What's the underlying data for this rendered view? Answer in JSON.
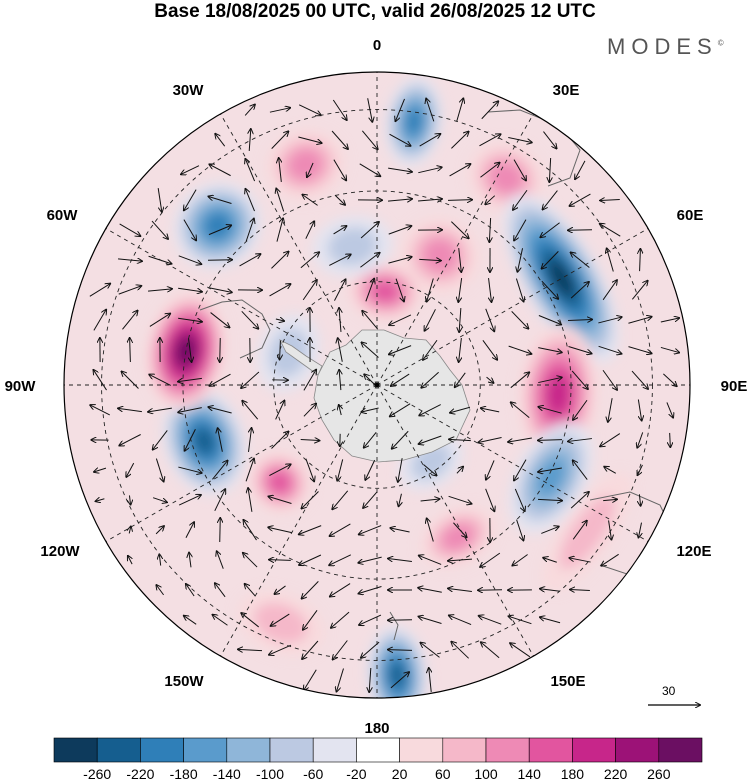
{
  "title": "Base 18/08/2025 00 UTC, valid 26/08/2025 12 UTC",
  "logo": "MODES",
  "logo_mark": "©",
  "longitude_labels": {
    "lon_0": "0",
    "lon_30E": "30E",
    "lon_60E": "60E",
    "lon_90E": "90E",
    "lon_120E": "120E",
    "lon_150E": "150E",
    "lon_180": "180",
    "lon_150W": "150W",
    "lon_120W": "120W",
    "lon_90W": "90W",
    "lon_60W": "60W",
    "lon_30W": "30W"
  },
  "reference_vector": {
    "label": "30"
  },
  "colorbar": {
    "labels": [
      "-260",
      "-220",
      "-180",
      "-140",
      "-100",
      "-60",
      "-20",
      "20",
      "60",
      "100",
      "140",
      "180",
      "220",
      "260"
    ],
    "colors": [
      "#0d3a5c",
      "#155e8f",
      "#2f7fb8",
      "#5a9bcc",
      "#8fb6d9",
      "#bcc9e2",
      "#e3e4f0",
      "#ffffff",
      "#f8dadd",
      "#f5b8c9",
      "#ee8ab5",
      "#e2559f",
      "#c7268a",
      "#9c1277",
      "#6b0f62"
    ]
  },
  "anomalies": [
    {
      "lon": 8,
      "r": 0.85,
      "v": -180,
      "rx": 28,
      "ry": 45
    },
    {
      "lon": 32,
      "r": 0.78,
      "v": 100,
      "rx": 40,
      "ry": 35
    },
    {
      "lon": 26,
      "r": 0.46,
      "v": 100,
      "rx": 40,
      "ry": 38
    },
    {
      "lon": 60,
      "r": 0.68,
      "v": -260,
      "rx": 95,
      "ry": 38
    },
    {
      "lon": 93,
      "r": 0.58,
      "v": 180,
      "rx": 70,
      "ry": 40
    },
    {
      "lon": 118,
      "r": 0.63,
      "v": -140,
      "rx": 60,
      "ry": 35
    },
    {
      "lon": 152,
      "r": 0.55,
      "v": 100,
      "rx": 40,
      "ry": 28
    },
    {
      "lon": 176,
      "r": 0.93,
      "v": -220,
      "rx": 30,
      "ry": 50
    },
    {
      "lon": -158,
      "r": 0.82,
      "v": 60,
      "rx": 45,
      "ry": 30
    },
    {
      "lon": -135,
      "r": 0.44,
      "v": 140,
      "rx": 32,
      "ry": 30
    },
    {
      "lon": -108,
      "r": 0.58,
      "v": -220,
      "rx": 55,
      "ry": 40
    },
    {
      "lon": -80,
      "r": 0.62,
      "v": 260,
      "rx": 60,
      "ry": 40
    },
    {
      "lon": -45,
      "r": 0.72,
      "v": -180,
      "rx": 45,
      "ry": 42
    },
    {
      "lon": -18,
      "r": 0.74,
      "v": 100,
      "rx": 40,
      "ry": 35
    },
    {
      "lon": 5,
      "r": 0.3,
      "v": 140,
      "rx": 38,
      "ry": 30
    },
    {
      "lon": -10,
      "r": 0.45,
      "v": -60,
      "rx": 40,
      "ry": 30
    },
    {
      "lon": 125,
      "r": 0.82,
      "v": 60,
      "rx": 70,
      "ry": 25
    },
    {
      "lon": 145,
      "r": 0.3,
      "v": -60,
      "rx": 35,
      "ry": 25
    },
    {
      "lon": -70,
      "r": 0.3,
      "v": -60,
      "rx": 40,
      "ry": 30
    }
  ]
}
